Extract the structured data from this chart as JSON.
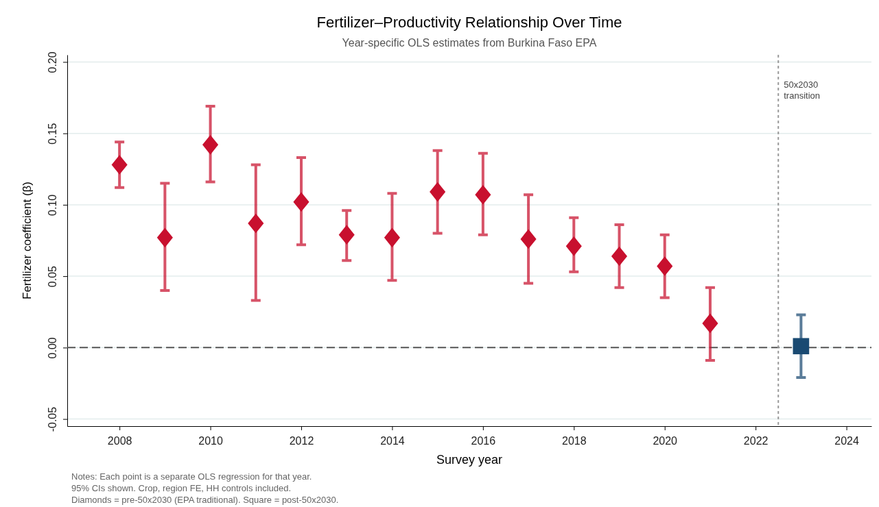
{
  "chart_data": {
    "type": "scatter",
    "title": "Fertilizer–Productivity Relationship Over Time",
    "subtitle": "Year-specific OLS estimates from Burkina Faso EPA",
    "xlabel": "Survey year",
    "ylabel": "Fertilizer coefficient (β)",
    "series": [
      {
        "color": "#c8102e",
        "marker": "diamond",
        "x": [
          2008,
          2009,
          2010,
          2011,
          2012,
          2013,
          2014,
          2015,
          2016,
          2017,
          2018,
          2019,
          2020,
          2021
        ],
        "values": [
          0.128,
          0.077,
          0.142,
          0.087,
          0.102,
          0.079,
          0.077,
          0.109,
          0.107,
          0.076,
          0.071,
          0.064,
          0.057,
          0.017
        ],
        "errors": [
          [
            0.112,
            0.144
          ],
          [
            0.04,
            0.115
          ],
          [
            0.116,
            0.169
          ],
          [
            0.033,
            0.128
          ],
          [
            0.072,
            0.133
          ],
          [
            0.061,
            0.096
          ],
          [
            0.047,
            0.108
          ],
          [
            0.08,
            0.138
          ],
          [
            0.079,
            0.136
          ],
          [
            0.045,
            0.107
          ],
          [
            0.053,
            0.091
          ],
          [
            0.042,
            0.086
          ],
          [
            0.035,
            0.079
          ],
          [
            -0.009,
            0.042
          ]
        ]
      },
      {
        "color": "#1a4a72",
        "marker": "square",
        "x": [
          2023
        ],
        "values": [
          0.001
        ],
        "errors": [
          [
            -0.021,
            0.023
          ]
        ]
      }
    ],
    "xlim": [
      2006.85,
      2024.55
    ],
    "xticks": [
      2008,
      2010,
      2012,
      2014,
      2016,
      2018,
      2020,
      2022,
      2024
    ],
    "ylim": [
      -0.055,
      0.205
    ],
    "yticks": [
      {
        "value": -0.05,
        "label": "-0.05"
      },
      {
        "value": 0,
        "label": "0.00"
      },
      0.05,
      {
        "value": 0.1,
        "label": "0.10"
      },
      0.15,
      {
        "value": 0.2,
        "label": "0.20"
      }
    ],
    "grid": "y",
    "ref_lines": [
      {
        "axis": "y",
        "value": 0,
        "line_style": "dashed",
        "color": "#555555"
      },
      {
        "axis": "x",
        "value": 2022.5,
        "line_style": "dotted",
        "color": "#999999",
        "label": "50x2030 transition"
      }
    ],
    "annotations": [
      "Notes: Each point is a separate OLS regression for that year.",
      "95% CIs shown. Crop, region FE, HH controls included.",
      "Diamonds = pre-50x2030 (EPA traditional). Square = post-50x2030."
    ]
  }
}
